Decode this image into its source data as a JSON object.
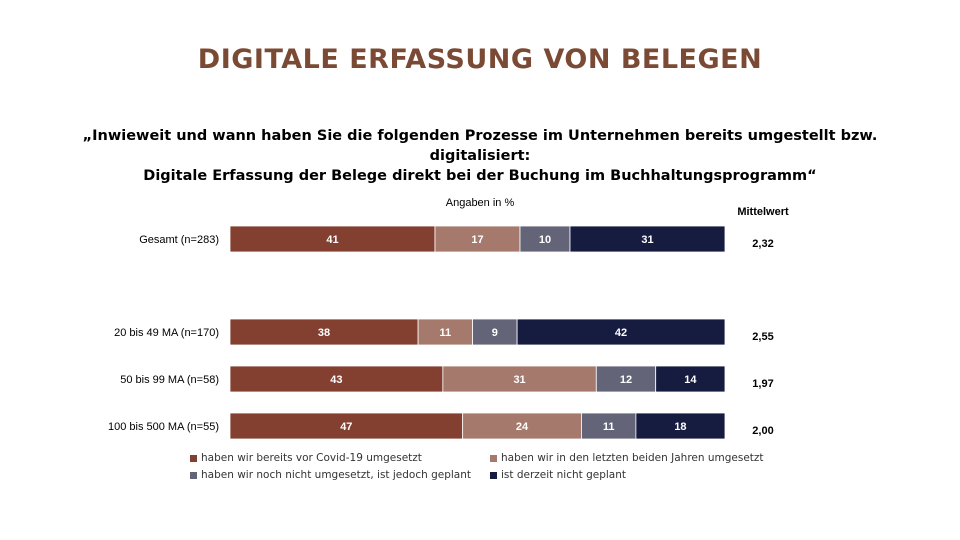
{
  "title": "DIGITALE ERFASSUNG VON BELEGEN",
  "question_line1": "„Inwieweit und wann haben Sie die folgenden Prozesse im Unternehmen bereits umgestellt bzw. digitalisiert:",
  "question_line2": "Digitale Erfassung der Belege direkt bei der Buchung im Buchhaltungsprogramm“",
  "unit_label": "Angaben in %",
  "mean_header": "Mittelwert",
  "colors": {
    "title": "#7b4a34",
    "series": [
      "#833f2f",
      "#a57a6d",
      "#646478",
      "#161b40"
    ]
  },
  "chart_data": {
    "type": "bar",
    "orientation": "horizontal-stacked",
    "categories": [
      "Gesamt (n=283)",
      "20 bis 49 MA (n=170)",
      "50 bis 99 MA (n=58)",
      "100 bis 500 MA (n=55)"
    ],
    "series": [
      {
        "name": "haben wir bereits vor Covid-19 umgesetzt",
        "values": [
          41,
          38,
          43,
          47
        ]
      },
      {
        "name": "haben wir in den letzten beiden Jahren umgesetzt",
        "values": [
          17,
          11,
          31,
          24
        ]
      },
      {
        "name": "haben wir noch nicht umgesetzt, ist jedoch geplant",
        "values": [
          10,
          9,
          12,
          11
        ]
      },
      {
        "name": "ist derzeit nicht geplant",
        "values": [
          31,
          42,
          14,
          18
        ]
      }
    ],
    "means": [
      "2,32",
      "2,55",
      "1,97",
      "2,00"
    ],
    "legend_position": "bottom",
    "grid": false
  }
}
